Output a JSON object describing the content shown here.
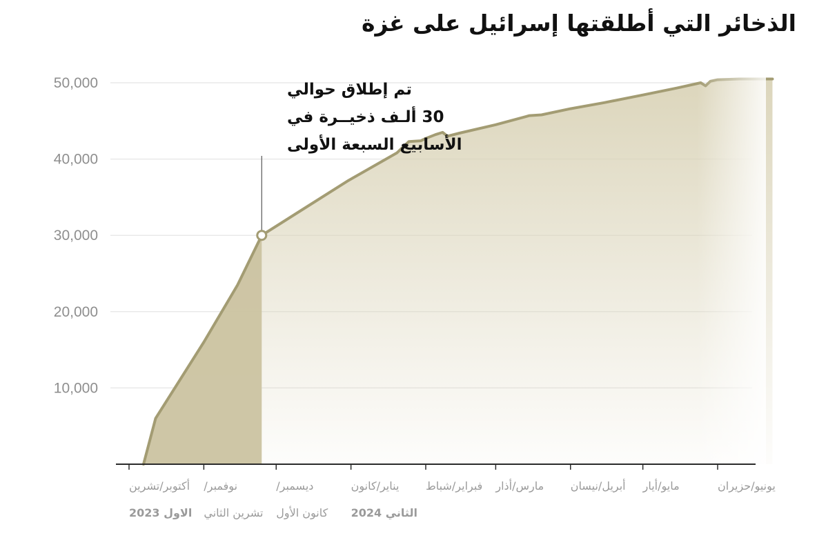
{
  "chart_data": {
    "type": "area",
    "title": "الذخائر التي أطلقتها إسرائيل على غزة",
    "ylim": [
      0,
      50000
    ],
    "y_ticks": [
      "10,000",
      "20,000",
      "30,000",
      "40,000",
      "50,000"
    ],
    "x_ticks": [
      {
        "lines": [
          "أكتوبر/تشرين",
          "الاول 2023"
        ],
        "date": "2023-10-01"
      },
      {
        "lines": [
          "نوفمبر/",
          "تشرين الثاني"
        ],
        "date": "2023-11-01"
      },
      {
        "lines": [
          "ديسمبر/",
          "كانون الأول"
        ],
        "date": "2023-12-01"
      },
      {
        "lines": [
          "يناير/كانون",
          "الثاني 2024"
        ],
        "date": "2024-01-01"
      },
      {
        "lines": [
          "فبراير/شباط"
        ],
        "date": "2024-02-01"
      },
      {
        "lines": [
          "مارس/أذار"
        ],
        "date": "2024-03-01"
      },
      {
        "lines": [
          "أبريل/نيسان"
        ],
        "date": "2024-04-01"
      },
      {
        "lines": [
          "مايو/أيار"
        ],
        "date": "2024-05-01"
      },
      {
        "lines": [
          "يونيو/حزيران"
        ],
        "date": "2024-06-01"
      }
    ],
    "series": [
      {
        "points": [
          [
            "2023-10-07",
            0
          ],
          [
            "2023-10-12",
            6000
          ],
          [
            "2023-10-20",
            10000
          ],
          [
            "2023-11-01",
            16000
          ],
          [
            "2023-11-15",
            23500
          ],
          [
            "2023-11-25",
            30000
          ],
          [
            "2023-12-10",
            33000
          ],
          [
            "2023-12-31",
            37200
          ],
          [
            "2024-01-20",
            40800
          ],
          [
            "2024-01-25",
            42300
          ],
          [
            "2024-01-30",
            42400
          ],
          [
            "2024-02-01",
            42700
          ],
          [
            "2024-02-05",
            43200
          ],
          [
            "2024-02-08",
            43500
          ],
          [
            "2024-02-10",
            43000
          ],
          [
            "2024-02-15",
            43400
          ],
          [
            "2024-03-01",
            44500
          ],
          [
            "2024-03-15",
            45700
          ],
          [
            "2024-03-20",
            45800
          ],
          [
            "2024-04-01",
            46600
          ],
          [
            "2024-04-15",
            47400
          ],
          [
            "2024-05-01",
            48400
          ],
          [
            "2024-05-15",
            49300
          ],
          [
            "2024-05-25",
            50000
          ],
          [
            "2024-05-27",
            49600
          ],
          [
            "2024-05-29",
            50200
          ],
          [
            "2024-06-01",
            50400
          ],
          [
            "2024-06-10",
            50500
          ]
        ]
      }
    ],
    "annotation": {
      "date": "2023-11-25",
      "value": 30000,
      "lines": [
        "تم إطلاق حوالي",
        "30  ألـف ذخيــرة في",
        "الأسابيع السبعة الأولى"
      ]
    },
    "colors": {
      "line": "#a39c73",
      "area": "#d8d1b4",
      "highlight_area": "#cbc3a1",
      "axis": "#2a2a2a",
      "grid": "#e9e9e9"
    }
  }
}
